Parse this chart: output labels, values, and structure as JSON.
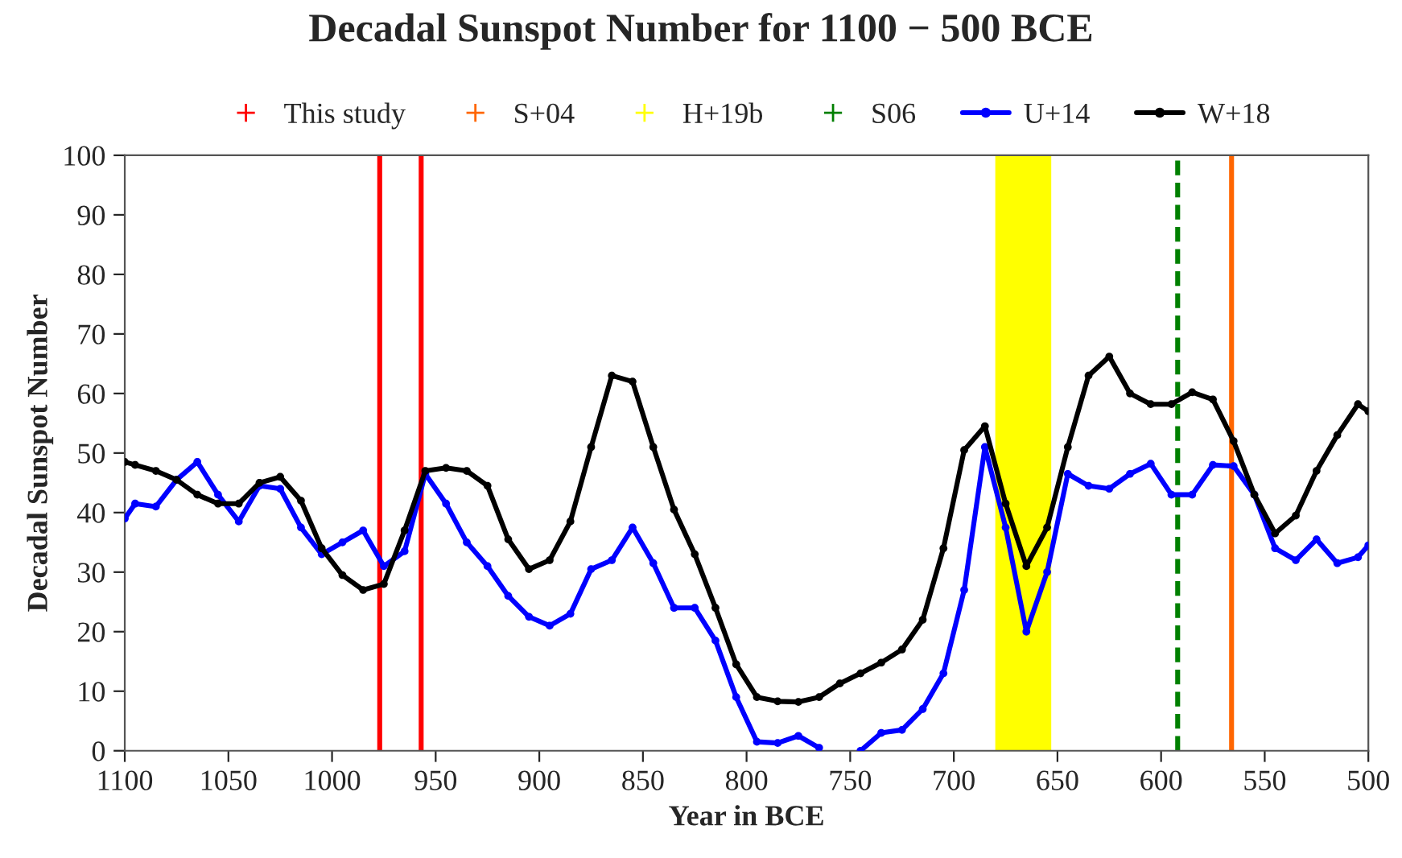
{
  "chart_data": {
    "type": "line",
    "title": "Decadal Sunspot Number for 1100 − 500 BCE",
    "xlabel": "Year in BCE",
    "ylabel": "Decadal Sunspot Number",
    "x": [
      1100,
      1095,
      1085,
      1075,
      1065,
      1055,
      1045,
      1035,
      1025,
      1015,
      1005,
      995,
      985,
      975,
      965,
      955,
      945,
      935,
      925,
      915,
      905,
      895,
      885,
      875,
      865,
      855,
      845,
      835,
      825,
      815,
      805,
      795,
      785,
      775,
      765,
      755,
      745,
      735,
      725,
      715,
      705,
      695,
      685,
      675,
      665,
      655,
      645,
      635,
      625,
      615,
      605,
      595,
      585,
      575,
      565,
      555,
      545,
      535,
      525,
      515,
      505,
      500
    ],
    "series": [
      {
        "name": "U+14",
        "color": "#0000ff",
        "values": [
          39,
          41.5,
          41,
          45.5,
          48.5,
          43,
          38.5,
          44.5,
          44,
          37.5,
          33,
          35,
          37,
          31,
          33.5,
          46.5,
          41.5,
          35,
          31,
          26,
          22.5,
          21,
          23,
          30.5,
          32,
          37.5,
          31.5,
          24,
          24,
          18.5,
          9,
          1.5,
          1.3,
          2.5,
          0.5,
          null,
          0,
          3,
          3.5,
          7,
          13,
          27,
          51,
          37.5,
          20,
          30,
          46.5,
          44.5,
          44,
          46.5,
          48.2,
          43,
          43,
          48,
          47.8,
          43,
          34,
          32,
          35.5,
          31.5,
          32.5,
          34.5
        ]
      },
      {
        "name": "W+18",
        "color": "#000000",
        "values": [
          48.5,
          48,
          47,
          45.5,
          43,
          41.5,
          41.5,
          45,
          46,
          42,
          34,
          29.5,
          27,
          28,
          37,
          47,
          47.5,
          47,
          44.5,
          35.5,
          30.5,
          32,
          38.5,
          51,
          63,
          62,
          51,
          40.5,
          33,
          24,
          14.5,
          9,
          8.3,
          8.2,
          9,
          11.3,
          13,
          14.8,
          17,
          22,
          34,
          50.5,
          54.5,
          41.5,
          31,
          37.5,
          51,
          63,
          66.2,
          60,
          58.2,
          58.2,
          60.2,
          59,
          52,
          43,
          36.5,
          39.5,
          47,
          53,
          58.2,
          57
        ]
      }
    ],
    "ref_lines": [
      {
        "axis": "x",
        "value": 977,
        "label": "This study",
        "color": "#ff0000",
        "line_style": "solid"
      },
      {
        "axis": "x",
        "value": 957,
        "color": "#ff0000",
        "line_style": "solid"
      },
      {
        "axis": "x",
        "value": 566,
        "label": "S+04",
        "color": "#ff6600",
        "line_style": "solid"
      },
      {
        "axis": "x",
        "value": 592,
        "label": "S06",
        "color": "#008000",
        "line_style": "dashed"
      }
    ],
    "bands": [
      {
        "axis": "x",
        "from": 680,
        "to": 653,
        "label": "H+19b",
        "color": "#ffff00"
      }
    ],
    "xlim": [
      1100,
      500
    ],
    "xticks": [
      1100,
      1050,
      1000,
      950,
      900,
      850,
      800,
      750,
      700,
      650,
      600,
      550,
      500
    ],
    "ylim": [
      0,
      100
    ],
    "yticks": [
      0,
      10,
      20,
      30,
      40,
      50,
      60,
      70,
      80,
      90,
      100
    ],
    "marker": "circle",
    "line_style": "solid",
    "grid": false,
    "legend": "top"
  }
}
